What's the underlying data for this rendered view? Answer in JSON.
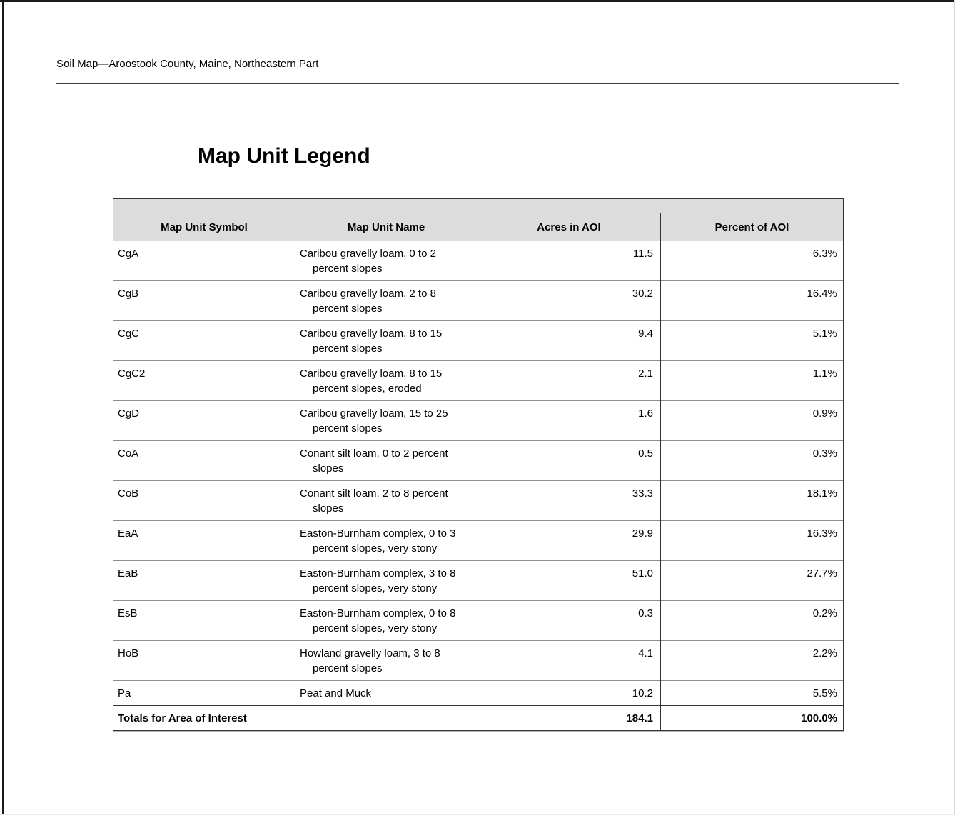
{
  "page": {
    "header": "Soil Map—Aroostook County, Maine, Northeastern Part",
    "title": "Map Unit Legend"
  },
  "table": {
    "columns": [
      "Map Unit Symbol",
      "Map Unit Name",
      "Acres in AOI",
      "Percent of AOI"
    ],
    "rows": [
      {
        "symbol": "CgA",
        "name": "Caribou gravelly loam, 0 to 2 percent slopes",
        "acres": "11.5",
        "percent": "6.3%"
      },
      {
        "symbol": "CgB",
        "name": "Caribou gravelly loam, 2 to 8 percent slopes",
        "acres": "30.2",
        "percent": "16.4%"
      },
      {
        "symbol": "CgC",
        "name": "Caribou gravelly loam, 8 to 15 percent slopes",
        "acres": "9.4",
        "percent": "5.1%"
      },
      {
        "symbol": "CgC2",
        "name": "Caribou gravelly loam, 8 to 15 percent slopes, eroded",
        "acres": "2.1",
        "percent": "1.1%"
      },
      {
        "symbol": "CgD",
        "name": "Caribou gravelly loam, 15 to 25 percent slopes",
        "acres": "1.6",
        "percent": "0.9%"
      },
      {
        "symbol": "CoA",
        "name": "Conant silt loam, 0 to 2 percent slopes",
        "acres": "0.5",
        "percent": "0.3%"
      },
      {
        "symbol": "CoB",
        "name": "Conant silt loam, 2 to 8 percent slopes",
        "acres": "33.3",
        "percent": "18.1%"
      },
      {
        "symbol": "EaA",
        "name": "Easton-Burnham complex, 0 to 3 percent slopes, very stony",
        "acres": "29.9",
        "percent": "16.3%"
      },
      {
        "symbol": "EaB",
        "name": "Easton-Burnham complex, 3 to 8 percent slopes, very stony",
        "acres": "51.0",
        "percent": "27.7%"
      },
      {
        "symbol": "EsB",
        "name": "Easton-Burnham complex, 0 to 8 percent slopes, very stony",
        "acres": "0.3",
        "percent": "0.2%"
      },
      {
        "symbol": "HoB",
        "name": "Howland gravelly loam, 3 to 8 percent slopes",
        "acres": "4.1",
        "percent": "2.2%"
      },
      {
        "symbol": "Pa",
        "name": "Peat and Muck",
        "acres": "10.2",
        "percent": "5.5%"
      }
    ],
    "totals": {
      "label": "Totals for Area of Interest",
      "acres": "184.1",
      "percent": "100.0%"
    }
  },
  "colors": {
    "header_bg": "#dcdcdc",
    "border_dark": "#333333",
    "border_light": "#8d8d8d",
    "page_edge": "#1a1a1a"
  }
}
